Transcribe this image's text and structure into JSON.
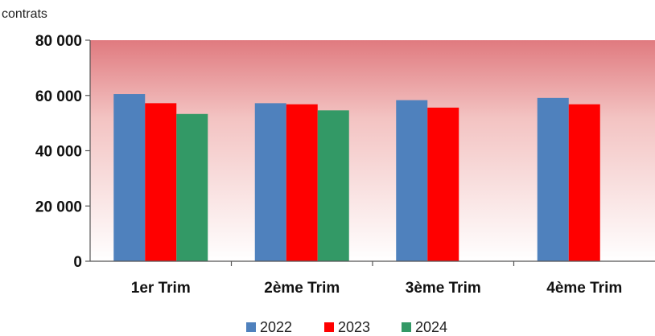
{
  "chart_data": {
    "type": "bar",
    "ylabel": "contrats",
    "ylim": [
      0,
      80000
    ],
    "yticks": [
      {
        "value": 0,
        "label": "0"
      },
      {
        "value": 20000,
        "label": "20 000"
      },
      {
        "value": 40000,
        "label": "40 000"
      },
      {
        "value": 60000,
        "label": "60 000"
      },
      {
        "value": 80000,
        "label": "80 000"
      }
    ],
    "categories": [
      "1er Trim",
      "2ème Trim",
      "3ème Trim",
      "4ème Trim"
    ],
    "series": [
      {
        "name": "2022",
        "color": "#4f81bd",
        "values": [
          60500,
          57200,
          58300,
          59100
        ]
      },
      {
        "name": "2023",
        "color": "#ff0000",
        "values": [
          57200,
          56800,
          55600,
          56800
        ]
      },
      {
        "name": "2024",
        "color": "#339966",
        "values": [
          53300,
          54600,
          null,
          null
        ]
      }
    ],
    "background_gradient": {
      "top": "#e07a7f",
      "bottom": "#ffffff"
    },
    "legend_position": "bottom-center"
  }
}
